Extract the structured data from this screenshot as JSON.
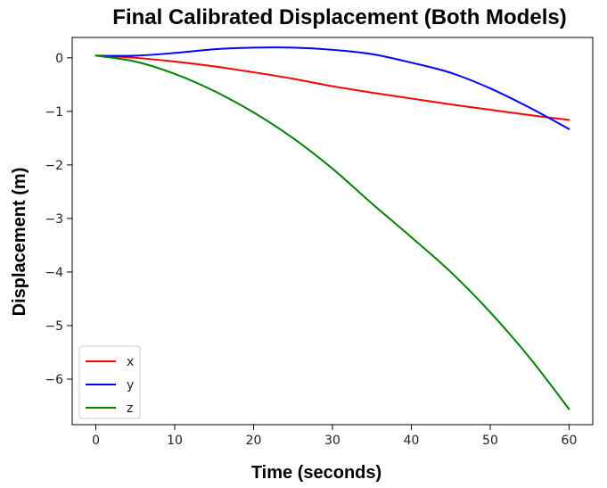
{
  "chart_data": {
    "type": "line",
    "title": "Final Calibrated Displacement (Both Models)",
    "xlabel": "Time (seconds)",
    "ylabel": "Displacement (m)",
    "xlim": [
      -3,
      63
    ],
    "ylim": [
      -6.85,
      0.38
    ],
    "x_ticks": [
      0,
      10,
      20,
      30,
      40,
      50,
      60
    ],
    "y_ticks": [
      0,
      -1,
      -2,
      -3,
      -4,
      -5,
      -6
    ],
    "x_tick_labels": [
      "0",
      "10",
      "20",
      "30",
      "40",
      "50",
      "60"
    ],
    "y_tick_labels": [
      "0",
      "−1",
      "−2",
      "−3",
      "−4",
      "−5",
      "−6"
    ],
    "grid": false,
    "legend_position": "lower-left",
    "series": [
      {
        "name": "x",
        "color": "#ff0000",
        "x": [
          0,
          5,
          10,
          15,
          20,
          25,
          30,
          35,
          40,
          45,
          50,
          55,
          60
        ],
        "y": [
          0.04,
          0.0,
          -0.07,
          -0.16,
          -0.27,
          -0.39,
          -0.53,
          -0.65,
          -0.76,
          -0.87,
          -0.97,
          -1.07,
          -1.16
        ]
      },
      {
        "name": "y",
        "color": "#0000ff",
        "x": [
          0,
          5,
          10,
          15,
          20,
          25,
          30,
          35,
          40,
          45,
          50,
          55,
          60
        ],
        "y": [
          0.04,
          0.04,
          0.09,
          0.16,
          0.19,
          0.19,
          0.15,
          0.07,
          -0.09,
          -0.28,
          -0.57,
          -0.93,
          -1.33
        ]
      },
      {
        "name": "z",
        "color": "#008000",
        "x": [
          0,
          5,
          10,
          15,
          20,
          25,
          30,
          35,
          40,
          45,
          50,
          55,
          60
        ],
        "y": [
          0.04,
          -0.07,
          -0.3,
          -0.62,
          -1.02,
          -1.5,
          -2.07,
          -2.72,
          -3.35,
          -4.0,
          -4.75,
          -5.6,
          -6.56
        ]
      }
    ]
  }
}
